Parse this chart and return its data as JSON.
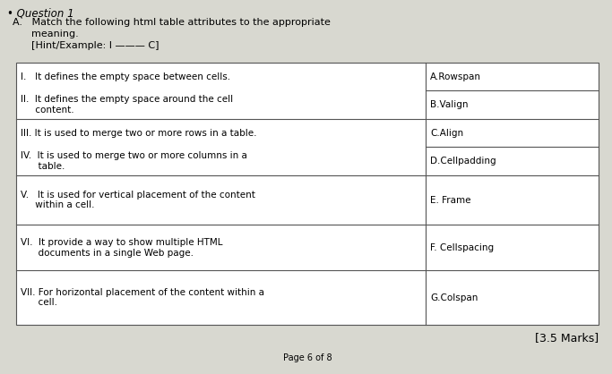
{
  "title_bullet": "• Question 1",
  "subtitle_lines": [
    "A.   Match the following html table attributes to the appropriate",
    "      meaning.",
    "      [Hint/Example: I ——— C]"
  ],
  "left_rows": [
    [
      "I.   It defines the empty space between cells.",
      "II.  It defines the empty space around the cell\n     content."
    ],
    [
      "III. It is used to merge two or more rows in a table.",
      "IV.  It is used to merge two or more columns in a\n      table."
    ],
    [
      "V.   It is used for vertical placement of the content\n     within a cell."
    ],
    [
      "VI.  It provide a way to show multiple HTML\n      documents in a single Web page."
    ],
    [
      "VII. For horizontal placement of the content within a\n      cell."
    ]
  ],
  "right_rows": [
    [
      "A.Rowspan",
      "B.Valign"
    ],
    [
      "C.Align",
      "D.Cellpadding"
    ],
    [
      "E. Frame"
    ],
    [
      "F. Cellspacing"
    ],
    [
      "G.Colspan"
    ]
  ],
  "marks": "[3.5 Marks]",
  "page": "Page 6 of 8",
  "bg_color": "#d8d8d0",
  "cell_bg": "#ffffff",
  "border_color": "#555555"
}
